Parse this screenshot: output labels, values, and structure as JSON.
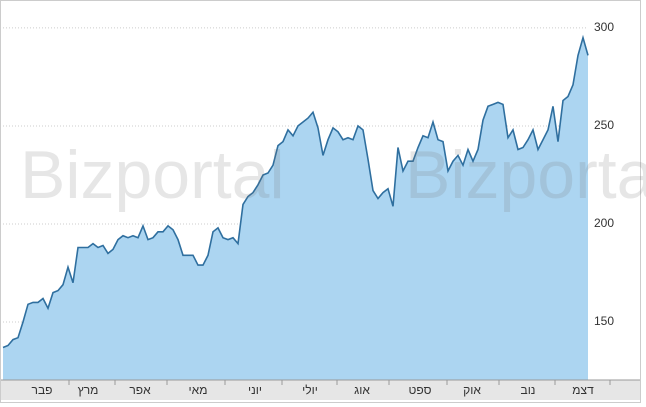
{
  "chart_data": {
    "type": "area",
    "watermark": "Bizportal",
    "values": [
      137,
      138,
      141,
      142,
      150,
      159,
      160,
      160,
      162,
      157,
      165,
      166,
      169,
      178,
      170,
      188,
      188,
      188,
      190,
      188,
      189,
      185,
      187,
      192,
      194,
      193,
      194,
      193,
      199,
      192,
      193,
      196,
      196,
      199,
      197,
      192,
      184,
      184,
      184,
      179,
      179,
      184,
      196,
      198,
      193,
      192,
      193,
      190,
      210,
      214,
      216,
      220,
      225,
      226,
      230,
      240,
      242,
      248,
      245,
      250,
      252,
      254,
      257,
      249,
      235,
      243,
      249,
      247,
      243,
      244,
      243,
      250,
      248,
      233,
      217,
      213,
      216,
      218,
      209,
      239,
      227,
      232,
      232,
      239,
      245,
      244,
      252,
      243,
      242,
      227,
      232,
      235,
      230,
      238,
      232,
      238,
      253,
      260,
      261,
      262,
      261,
      244,
      248,
      238,
      239,
      243,
      248,
      238,
      243,
      248,
      260,
      242,
      263,
      265,
      271,
      286,
      295,
      286
    ],
    "line_color": "#2f6f9f",
    "fill_color": "#acd5f1",
    "xlim": [
      0,
      117
    ],
    "xticks": [
      {
        "value": 7.8,
        "label": "פבר"
      },
      {
        "value": 17,
        "label": "מרץ"
      },
      {
        "value": 27.4,
        "label": "אפר"
      },
      {
        "value": 39,
        "label": "מאי"
      },
      {
        "value": 50.4,
        "label": "יוני"
      },
      {
        "value": 61.4,
        "label": "יולי"
      },
      {
        "value": 71.8,
        "label": "אוג"
      },
      {
        "value": 83.4,
        "label": "ספט"
      },
      {
        "value": 93.8,
        "label": "אוק"
      },
      {
        "value": 105,
        "label": "נוב"
      },
      {
        "value": 116,
        "label": "דצמ"
      }
    ],
    "ylim": [
      120.4,
      311.7
    ],
    "yticks": [
      150,
      200,
      250,
      300
    ],
    "grid": true
  }
}
